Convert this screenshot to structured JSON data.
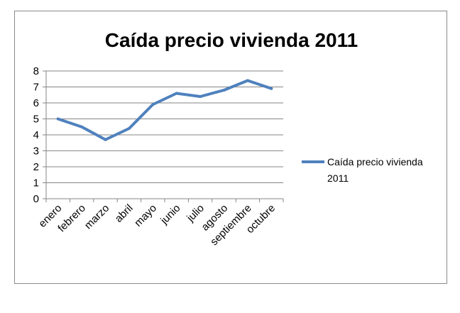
{
  "chart_data": {
    "type": "line",
    "title": "Caída precio vivienda 2011",
    "xlabel": "",
    "ylabel": "",
    "categories": [
      "enero",
      "febrero",
      "marzo",
      "abril",
      "mayo",
      "junio",
      "julio",
      "agosto",
      "septiembre",
      "octubre"
    ],
    "series": [
      {
        "name": "Caída precio vivienda 2011",
        "values": [
          5.0,
          4.5,
          3.7,
          4.4,
          5.9,
          6.6,
          6.4,
          6.8,
          7.4,
          6.9
        ],
        "color": "#4F81BD"
      }
    ],
    "ylim": [
      0,
      8
    ],
    "yticks": [
      0,
      1,
      2,
      3,
      4,
      5,
      6,
      7,
      8
    ],
    "grid": true,
    "legend": "right"
  }
}
